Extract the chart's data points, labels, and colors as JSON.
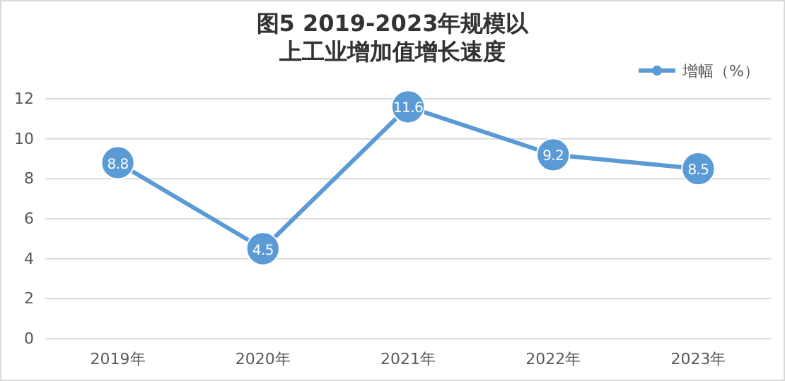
{
  "chart_data": {
    "type": "line",
    "title": "图5  2019-2023年规模以上工业增加值增长速度",
    "categories": [
      "2019年",
      "2020年",
      "2021年",
      "2022年",
      "2023年"
    ],
    "series": [
      {
        "name": "增幅（%）",
        "color": "#5b9bd5",
        "values": [
          8.8,
          4.5,
          11.6,
          9.2,
          8.5
        ]
      }
    ],
    "ylim": [
      0,
      12
    ],
    "yticks": [
      0,
      2,
      4,
      6,
      8,
      10,
      12
    ],
    "grid": "y",
    "legend": "top right",
    "marker": "circle",
    "data_labels": true
  }
}
